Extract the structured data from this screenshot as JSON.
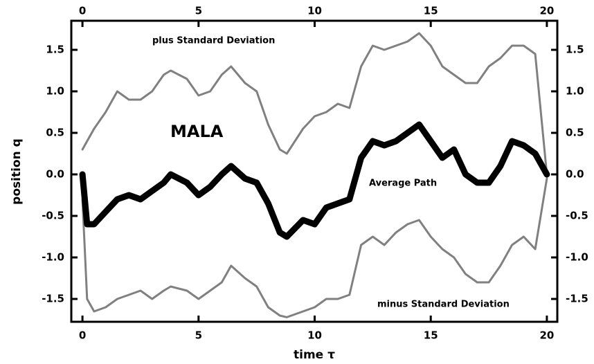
{
  "chart_data": {
    "type": "line",
    "xlabel": "time τ",
    "ylabel": "position q",
    "annotations": [
      "plus Standard Deviation",
      "MALA",
      "Average Path",
      "minus Standard Deviation"
    ],
    "x": [
      0,
      0.2,
      0.5,
      1,
      1.5,
      2,
      2.5,
      3,
      3.5,
      3.8,
      4.5,
      5,
      5.5,
      6,
      6.4,
      7,
      7.5,
      8,
      8.5,
      8.8,
      9.5,
      10,
      10.5,
      11,
      11.5,
      12,
      12.5,
      13,
      13.5,
      14,
      14.5,
      15,
      15.5,
      16,
      16.5,
      17,
      17.5,
      18,
      18.5,
      19,
      19.5,
      20
    ],
    "series": [
      {
        "name": "plus Standard Deviation",
        "color": "#808080",
        "width": 3,
        "values": [
          0.3,
          0.4,
          0.55,
          0.75,
          1.0,
          0.9,
          0.9,
          1.0,
          1.2,
          1.25,
          1.15,
          0.95,
          1.0,
          1.2,
          1.3,
          1.1,
          1.0,
          0.6,
          0.3,
          0.25,
          0.55,
          0.7,
          0.75,
          0.85,
          0.8,
          1.3,
          1.55,
          1.5,
          1.55,
          1.6,
          1.7,
          1.55,
          1.3,
          1.2,
          1.1,
          1.1,
          1.3,
          1.4,
          1.55,
          1.55,
          1.45,
          0.0
        ]
      },
      {
        "name": "minus Standard Deviation",
        "color": "#808080",
        "width": 3,
        "values": [
          -0.3,
          -1.5,
          -1.65,
          -1.6,
          -1.5,
          -1.45,
          -1.4,
          -1.5,
          -1.4,
          -1.35,
          -1.4,
          -1.5,
          -1.4,
          -1.3,
          -1.1,
          -1.25,
          -1.35,
          -1.6,
          -1.7,
          -1.72,
          -1.65,
          -1.6,
          -1.5,
          -1.5,
          -1.45,
          -0.85,
          -0.75,
          -0.85,
          -0.7,
          -0.6,
          -0.55,
          -0.75,
          -0.9,
          -1.0,
          -1.2,
          -1.3,
          -1.3,
          -1.1,
          -0.85,
          -0.75,
          -0.9,
          -0.05
        ]
      },
      {
        "name": "Average Path",
        "color": "#000000",
        "width": 9,
        "values": [
          0.0,
          -0.6,
          -0.6,
          -0.45,
          -0.3,
          -0.25,
          -0.3,
          -0.2,
          -0.1,
          0.0,
          -0.1,
          -0.25,
          -0.15,
          0.0,
          0.1,
          -0.05,
          -0.1,
          -0.35,
          -0.7,
          -0.75,
          -0.55,
          -0.6,
          -0.4,
          -0.35,
          -0.3,
          0.2,
          0.4,
          0.35,
          0.4,
          0.5,
          0.6,
          0.4,
          0.2,
          0.3,
          0.0,
          -0.1,
          -0.1,
          0.1,
          0.4,
          0.35,
          0.25,
          0.0
        ]
      }
    ],
    "xlim": [
      -0.48,
      20.45
    ],
    "xticks": [
      0,
      5,
      10,
      15,
      20
    ],
    "ylim": [
      -1.775,
      1.85
    ],
    "yticks": [
      -1.5,
      {
        "value": -1.0,
        "label": "-1.0"
      },
      -0.5,
      {
        "value": 0,
        "label": "0.0"
      },
      0.5,
      {
        "value": 1.0,
        "label": "1.0"
      },
      1.5
    ]
  }
}
